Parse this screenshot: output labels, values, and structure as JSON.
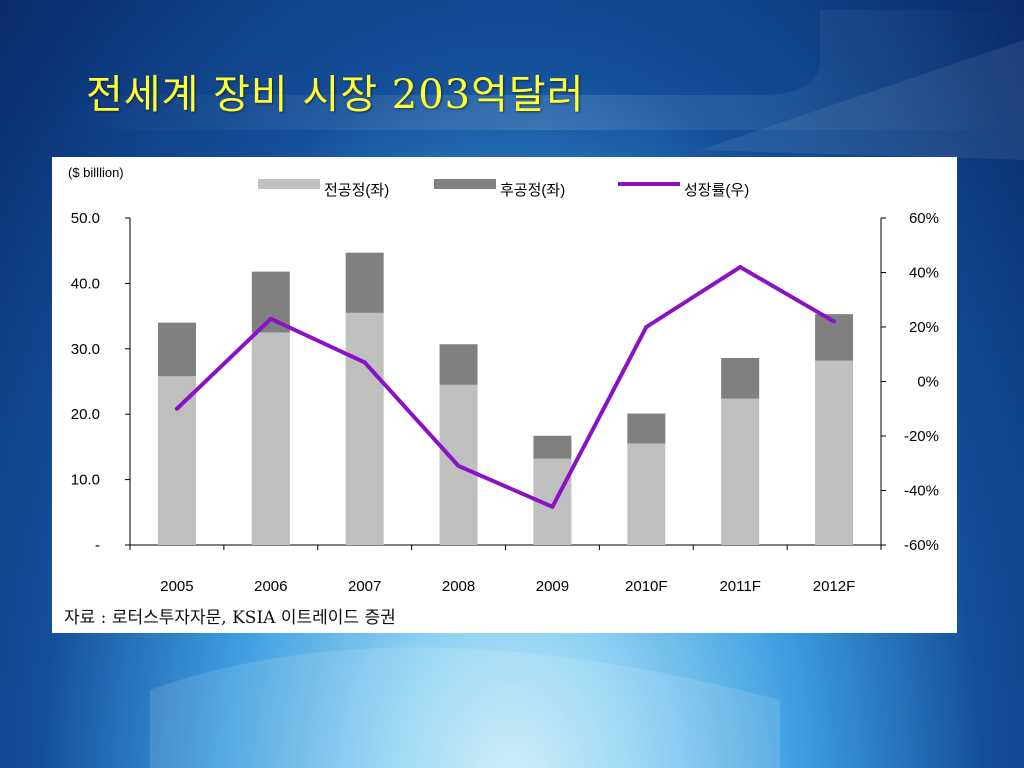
{
  "slide": {
    "title": "전세계 장비 시장 203억달러",
    "source": "자료 : 로터스투자자문, KSIA 이트레이드 증권"
  },
  "chart_data": {
    "type": "bar",
    "stacked": true,
    "unit_label": "($ billlion)",
    "categories": [
      "2005",
      "2006",
      "2007",
      "2008",
      "2009",
      "2010F",
      "2011F",
      "2012F"
    ],
    "series": [
      {
        "name": "전공정(좌)",
        "kind": "bar",
        "axis": "left",
        "color": "#bfbfbf",
        "values": [
          25.8,
          32.5,
          35.5,
          24.5,
          13.2,
          15.5,
          22.4,
          28.2
        ]
      },
      {
        "name": "후공정(좌)",
        "kind": "bar",
        "axis": "left",
        "color": "#808080",
        "values": [
          8.2,
          9.3,
          9.2,
          6.2,
          3.5,
          4.6,
          6.2,
          7.1
        ]
      },
      {
        "name": "성장률(우)",
        "kind": "line",
        "axis": "right",
        "color": "#8a12c4",
        "values": [
          -10,
          23,
          7,
          -31,
          -46,
          20,
          42,
          22
        ]
      }
    ],
    "left_axis": {
      "min": 0,
      "max": 50,
      "ticks": [
        "-",
        "10.0",
        "20.0",
        "30.0",
        "40.0",
        "50.0"
      ]
    },
    "right_axis": {
      "min": -60,
      "max": 60,
      "ticks": [
        "-60%",
        "-40%",
        "-20%",
        "0%",
        "20%",
        "40%",
        "60%"
      ]
    },
    "grid": false,
    "legend_position": "top"
  }
}
